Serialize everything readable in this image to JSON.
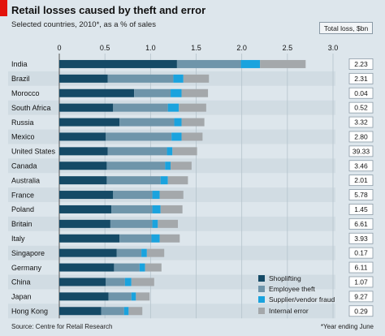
{
  "header": {
    "title": "Retail losses caused by theft and error",
    "subtitle": "Selected countries, 2010*, as a % of sales",
    "total_loss_label": "Total loss, $bn"
  },
  "footer": {
    "source": "Source: Centre for Retail Research",
    "footnote": "*Year ending June"
  },
  "colors": {
    "Shoplifting": "#154a66",
    "Employee theft": "#6f95aa",
    "Supplier/vendor fraud": "#1aa3de",
    "Internal error": "#a4a8ab",
    "red_tab": "#e3120b"
  },
  "chart_data": {
    "type": "bar",
    "orientation": "horizontal",
    "stacked": true,
    "title": "Retail losses caused by theft and error",
    "subtitle": "Selected countries, 2010*, as a % of sales",
    "xlim": [
      0,
      3.0
    ],
    "ticks": [
      "0",
      "0.5",
      "1.0",
      "1.5",
      "2.0",
      "2.5",
      "3.0"
    ],
    "tick_values": [
      0,
      0.5,
      1.0,
      1.5,
      2.0,
      2.5,
      3.0
    ],
    "grid": true,
    "legend_position": "bottom-right",
    "categories": [
      "India",
      "Brazil",
      "Morocco",
      "South Africa",
      "Russia",
      "Mexico",
      "United States",
      "Canada",
      "Australia",
      "France",
      "Poland",
      "Britain",
      "Italy",
      "Singapore",
      "Germany",
      "China",
      "Japan",
      "Hong Kong"
    ],
    "series": [
      {
        "name": "Shoplifting",
        "values": [
          1.29,
          0.53,
          0.82,
          0.59,
          0.66,
          0.51,
          0.53,
          0.52,
          0.52,
          0.59,
          0.57,
          0.56,
          0.66,
          0.63,
          0.6,
          0.51,
          0.54,
          0.46
        ]
      },
      {
        "name": "Employee theft",
        "values": [
          0.7,
          0.72,
          0.4,
          0.6,
          0.6,
          0.72,
          0.65,
          0.64,
          0.59,
          0.43,
          0.45,
          0.46,
          0.35,
          0.27,
          0.28,
          0.21,
          0.25,
          0.25
        ]
      },
      {
        "name": "Supplier/vendor fraud",
        "values": [
          0.21,
          0.11,
          0.12,
          0.12,
          0.08,
          0.11,
          0.06,
          0.06,
          0.08,
          0.08,
          0.09,
          0.06,
          0.09,
          0.06,
          0.06,
          0.07,
          0.05,
          0.05
        ]
      },
      {
        "name": "Internal error",
        "values": [
          0.5,
          0.28,
          0.29,
          0.3,
          0.25,
          0.23,
          0.27,
          0.23,
          0.22,
          0.26,
          0.24,
          0.22,
          0.22,
          0.19,
          0.18,
          0.25,
          0.15,
          0.15
        ]
      }
    ],
    "total_loss": [
      "2.23",
      "2.31",
      "0.04",
      "0.52",
      "3.32",
      "2.80",
      "39.33",
      "3.46",
      "2.01",
      "5.78",
      "1.45",
      "6.61",
      "3.93",
      "0.17",
      "6.11",
      "1.07",
      "9.27",
      "0.29"
    ]
  }
}
